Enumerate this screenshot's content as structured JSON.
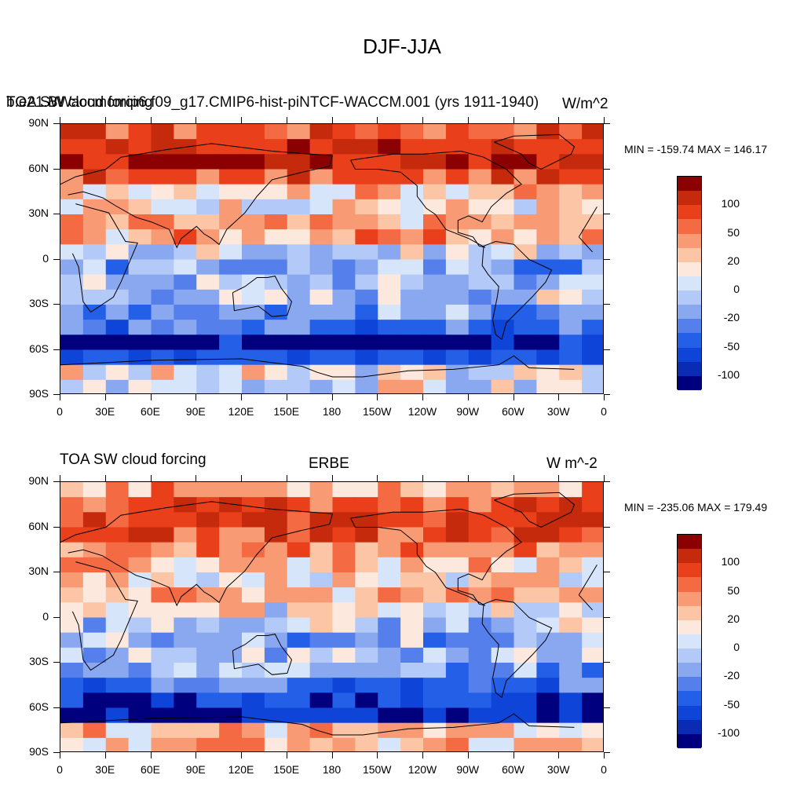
{
  "title": "DJF-JJA",
  "colors": [
    "#00007f",
    "#0a2bb3",
    "#0f44d9",
    "#245fe8",
    "#5580ec",
    "#8aa8f0",
    "#b3c9f7",
    "#d7e5fa",
    "#fce8dd",
    "#fbc5a6",
    "#f89b75",
    "#f46a42",
    "#e93f1a",
    "#c52a0d",
    "#8b0000"
  ],
  "colorbar_labels": [
    "100",
    "50",
    "20",
    "0",
    "-20",
    "-50",
    "-100"
  ],
  "x_ticks": [
    "0",
    "30E",
    "60E",
    "90E",
    "120E",
    "150E",
    "180",
    "150W",
    "120W",
    "90W",
    "60W",
    "30W",
    "0"
  ],
  "y_ticks": [
    "90N",
    "60N",
    "30N",
    "0",
    "30S",
    "60S",
    "90S"
  ],
  "panels": [
    {
      "left_label": "TOA SW cloud forcing",
      "center_label": "b.e21.BWaccmcmip6.f09_g17.CMIP6-hist-piNTCF-WACCM.001 (yrs 1911-1940)",
      "right_label": "W/m^2",
      "minmax": "MIN = -159.74 MAX = 146.17"
    },
    {
      "left_label": "TOA SW cloud forcing",
      "center_label": "ERBE",
      "right_label": "W m^-2",
      "minmax": "MIN = -235.06 MAX = 179.49"
    }
  ],
  "chart_data": [
    {
      "type": "heatmap",
      "title": "DJF-JJA",
      "field": "TOA SW cloud forcing",
      "case": "b.e21.BWaccmcmip6.f09_g17.CMIP6-hist-piNTCF-WACCM.001 (yrs 1911-1940)",
      "units": "W/m^2",
      "min": -159.74,
      "max": 146.17,
      "xlim": [
        0,
        360
      ],
      "ylim": [
        -90,
        90
      ],
      "colorbar_levels": [
        -100,
        -80,
        -50,
        -40,
        -20,
        -10,
        0,
        10,
        20,
        40,
        50,
        80,
        100
      ],
      "zonal_profile": [
        {
          "lat": 85,
          "value": 60
        },
        {
          "lat": 75,
          "value": 80
        },
        {
          "lat": 65,
          "value": 90
        },
        {
          "lat": 55,
          "value": 55
        },
        {
          "lat": 45,
          "value": 20
        },
        {
          "lat": 35,
          "value": 10
        },
        {
          "lat": 25,
          "value": 20
        },
        {
          "lat": 15,
          "value": 25
        },
        {
          "lat": 5,
          "value": -10
        },
        {
          "lat": -5,
          "value": -30
        },
        {
          "lat": -15,
          "value": -20
        },
        {
          "lat": -25,
          "value": -15
        },
        {
          "lat": -35,
          "value": -30
        },
        {
          "lat": -45,
          "value": -60
        },
        {
          "lat": -55,
          "value": -100
        },
        {
          "lat": -65,
          "value": -70
        },
        {
          "lat": -75,
          "value": -5
        },
        {
          "lat": -85,
          "value": -5
        }
      ]
    },
    {
      "type": "heatmap",
      "title": "DJF-JJA",
      "field": "TOA SW cloud forcing",
      "case": "ERBE",
      "units": "W m^-2",
      "min": -235.06,
      "max": 179.49,
      "xlim": [
        0,
        360
      ],
      "ylim": [
        -90,
        90
      ],
      "colorbar_levels": [
        -100,
        -80,
        -50,
        -40,
        -20,
        -10,
        0,
        10,
        20,
        40,
        50,
        80,
        100
      ],
      "zonal_profile": [
        {
          "lat": 85,
          "value": 30
        },
        {
          "lat": 75,
          "value": 60
        },
        {
          "lat": 65,
          "value": 70
        },
        {
          "lat": 55,
          "value": 60
        },
        {
          "lat": 45,
          "value": 40
        },
        {
          "lat": 35,
          "value": 20
        },
        {
          "lat": 25,
          "value": 10
        },
        {
          "lat": 15,
          "value": 20
        },
        {
          "lat": 5,
          "value": 5
        },
        {
          "lat": -5,
          "value": -15
        },
        {
          "lat": -15,
          "value": -25
        },
        {
          "lat": -25,
          "value": -20
        },
        {
          "lat": -35,
          "value": -30
        },
        {
          "lat": -45,
          "value": -55
        },
        {
          "lat": -55,
          "value": -90
        },
        {
          "lat": -65,
          "value": -110
        },
        {
          "lat": -75,
          "value": 15
        },
        {
          "lat": -85,
          "value": 20
        }
      ]
    }
  ]
}
